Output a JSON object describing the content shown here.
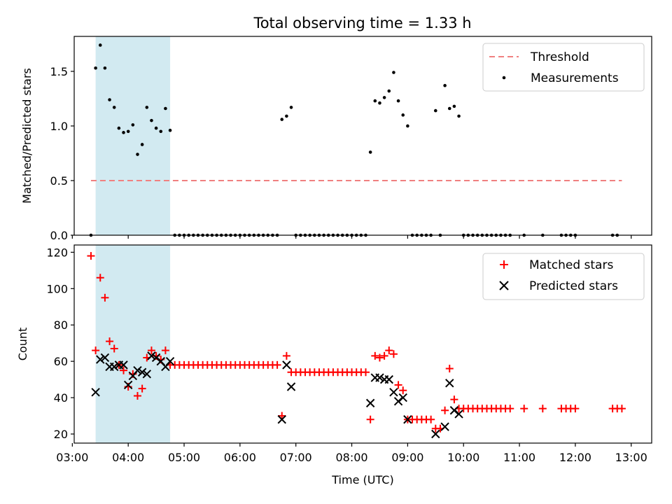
{
  "chart_data": [
    {
      "type": "scatter",
      "title": "Total observing time = 1.33 h",
      "xlabel": "",
      "ylabel": "Matched/Predicted stars",
      "xlim": [
        "03:02",
        "13:22"
      ],
      "ylim": [
        0,
        1.82
      ],
      "yticks": [
        0.0,
        0.5,
        1.0,
        1.5
      ],
      "ytick_labels": [
        "0.0",
        "0.5",
        "1.0",
        "1.5"
      ],
      "highlight_span": [
        "03:25",
        "04:45"
      ],
      "series": [
        {
          "name": "Threshold",
          "kind": "dashed-line",
          "color": "#f08080",
          "x": [
            "03:20",
            "12:50"
          ],
          "y": [
            0.5,
            0.5
          ]
        },
        {
          "name": "Measurements",
          "kind": "points",
          "color": "#000000",
          "points": [
            [
              "03:20",
              0
            ],
            [
              "03:25",
              1.53
            ],
            [
              "03:30",
              1.74
            ],
            [
              "03:35",
              1.53
            ],
            [
              "03:40",
              1.24
            ],
            [
              "03:45",
              1.17
            ],
            [
              "03:50",
              0.98
            ],
            [
              "03:55",
              0.94
            ],
            [
              "04:00",
              0.95
            ],
            [
              "04:05",
              1.01
            ],
            [
              "04:10",
              0.74
            ],
            [
              "04:15",
              0.83
            ],
            [
              "04:20",
              1.17
            ],
            [
              "04:25",
              1.05
            ],
            [
              "04:30",
              0.98
            ],
            [
              "04:35",
              0.95
            ],
            [
              "04:40",
              1.16
            ],
            [
              "04:45",
              0.96
            ],
            [
              "04:50",
              0
            ],
            [
              "04:55",
              0
            ],
            [
              "05:00",
              0
            ],
            [
              "05:05",
              0
            ],
            [
              "05:10",
              0
            ],
            [
              "05:15",
              0
            ],
            [
              "05:20",
              0
            ],
            [
              "05:25",
              0
            ],
            [
              "05:30",
              0
            ],
            [
              "05:35",
              0
            ],
            [
              "05:40",
              0
            ],
            [
              "05:45",
              0
            ],
            [
              "05:50",
              0
            ],
            [
              "05:55",
              0
            ],
            [
              "06:00",
              0
            ],
            [
              "06:05",
              0
            ],
            [
              "06:10",
              0
            ],
            [
              "06:15",
              0
            ],
            [
              "06:20",
              0
            ],
            [
              "06:25",
              0
            ],
            [
              "06:30",
              0
            ],
            [
              "06:35",
              0
            ],
            [
              "06:40",
              0
            ],
            [
              "06:45",
              1.06
            ],
            [
              "06:50",
              1.09
            ],
            [
              "06:55",
              1.17
            ],
            [
              "07:00",
              0
            ],
            [
              "07:05",
              0
            ],
            [
              "07:10",
              0
            ],
            [
              "07:15",
              0
            ],
            [
              "07:20",
              0
            ],
            [
              "07:25",
              0
            ],
            [
              "07:30",
              0
            ],
            [
              "07:35",
              0
            ],
            [
              "07:40",
              0
            ],
            [
              "07:45",
              0
            ],
            [
              "07:50",
              0
            ],
            [
              "07:55",
              0
            ],
            [
              "08:00",
              0
            ],
            [
              "08:05",
              0
            ],
            [
              "08:10",
              0
            ],
            [
              "08:15",
              0
            ],
            [
              "08:20",
              0.76
            ],
            [
              "08:25",
              1.23
            ],
            [
              "08:30",
              1.21
            ],
            [
              "08:35",
              1.26
            ],
            [
              "08:40",
              1.32
            ],
            [
              "08:45",
              1.49
            ],
            [
              "08:50",
              1.23
            ],
            [
              "08:55",
              1.1
            ],
            [
              "09:00",
              1.0
            ],
            [
              "09:05",
              0
            ],
            [
              "09:10",
              0
            ],
            [
              "09:15",
              0
            ],
            [
              "09:20",
              0
            ],
            [
              "09:25",
              0
            ],
            [
              "09:30",
              1.14
            ],
            [
              "09:35",
              0
            ],
            [
              "09:40",
              1.37
            ],
            [
              "09:45",
              1.16
            ],
            [
              "09:50",
              1.18
            ],
            [
              "09:55",
              1.09
            ],
            [
              "10:00",
              0
            ],
            [
              "10:05",
              0
            ],
            [
              "10:10",
              0
            ],
            [
              "10:15",
              0
            ],
            [
              "10:20",
              0
            ],
            [
              "10:25",
              0
            ],
            [
              "10:30",
              0
            ],
            [
              "10:35",
              0
            ],
            [
              "10:40",
              0
            ],
            [
              "10:45",
              0
            ],
            [
              "10:50",
              0
            ],
            [
              "11:05",
              0
            ],
            [
              "11:25",
              0
            ],
            [
              "11:45",
              0
            ],
            [
              "11:50",
              0
            ],
            [
              "11:55",
              0
            ],
            [
              "12:00",
              0
            ],
            [
              "12:40",
              0
            ],
            [
              "12:45",
              0
            ]
          ]
        }
      ],
      "legend": "top-right"
    },
    {
      "type": "scatter",
      "title": "",
      "xlabel": "Time (UTC)",
      "ylabel": "Count",
      "xlim": [
        "03:02",
        "13:22"
      ],
      "ylim": [
        15,
        124
      ],
      "yticks": [
        20,
        40,
        60,
        80,
        100,
        120
      ],
      "ytick_labels": [
        "20",
        "40",
        "60",
        "80",
        "100",
        "120"
      ],
      "xtick_labels": [
        "03:00",
        "04:00",
        "05:00",
        "06:00",
        "07:00",
        "08:00",
        "09:00",
        "10:00",
        "11:00",
        "12:00",
        "13:00"
      ],
      "highlight_span": [
        "03:25",
        "04:45"
      ],
      "series": [
        {
          "name": "Matched stars",
          "marker": "plus",
          "color": "#ff0000",
          "points": [
            [
              "03:20",
              118
            ],
            [
              "03:25",
              66
            ],
            [
              "03:30",
              106
            ],
            [
              "03:35",
              95
            ],
            [
              "03:40",
              71
            ],
            [
              "03:45",
              67
            ],
            [
              "03:50",
              58
            ],
            [
              "03:55",
              55
            ],
            [
              "04:00",
              46
            ],
            [
              "04:05",
              53
            ],
            [
              "04:10",
              41
            ],
            [
              "04:15",
              45
            ],
            [
              "04:20",
              62
            ],
            [
              "04:25",
              66
            ],
            [
              "04:30",
              63
            ],
            [
              "04:35",
              61
            ],
            [
              "04:40",
              66
            ],
            [
              "04:45",
              58
            ],
            [
              "04:50",
              58
            ],
            [
              "04:55",
              58
            ],
            [
              "05:00",
              58
            ],
            [
              "05:05",
              58
            ],
            [
              "05:10",
              58
            ],
            [
              "05:15",
              58
            ],
            [
              "05:20",
              58
            ],
            [
              "05:25",
              58
            ],
            [
              "05:30",
              58
            ],
            [
              "05:35",
              58
            ],
            [
              "05:40",
              58
            ],
            [
              "05:45",
              58
            ],
            [
              "05:50",
              58
            ],
            [
              "05:55",
              58
            ],
            [
              "06:00",
              58
            ],
            [
              "06:05",
              58
            ],
            [
              "06:10",
              58
            ],
            [
              "06:15",
              58
            ],
            [
              "06:20",
              58
            ],
            [
              "06:25",
              58
            ],
            [
              "06:30",
              58
            ],
            [
              "06:35",
              58
            ],
            [
              "06:40",
              58
            ],
            [
              "06:45",
              30
            ],
            [
              "06:50",
              63
            ],
            [
              "06:55",
              54
            ],
            [
              "07:00",
              54
            ],
            [
              "07:05",
              54
            ],
            [
              "07:10",
              54
            ],
            [
              "07:15",
              54
            ],
            [
              "07:20",
              54
            ],
            [
              "07:25",
              54
            ],
            [
              "07:30",
              54
            ],
            [
              "07:35",
              54
            ],
            [
              "07:40",
              54
            ],
            [
              "07:45",
              54
            ],
            [
              "07:50",
              54
            ],
            [
              "07:55",
              54
            ],
            [
              "08:00",
              54
            ],
            [
              "08:05",
              54
            ],
            [
              "08:10",
              54
            ],
            [
              "08:15",
              54
            ],
            [
              "08:20",
              28
            ],
            [
              "08:25",
              63
            ],
            [
              "08:30",
              62
            ],
            [
              "08:35",
              63
            ],
            [
              "08:40",
              66
            ],
            [
              "08:45",
              64
            ],
            [
              "08:50",
              47
            ],
            [
              "08:55",
              44
            ],
            [
              "09:00",
              28
            ],
            [
              "09:05",
              28
            ],
            [
              "09:10",
              28
            ],
            [
              "09:15",
              28
            ],
            [
              "09:20",
              28
            ],
            [
              "09:25",
              28
            ],
            [
              "09:30",
              23
            ],
            [
              "09:35",
              23
            ],
            [
              "09:40",
              33
            ],
            [
              "09:45",
              56
            ],
            [
              "09:50",
              39
            ],
            [
              "09:55",
              34
            ],
            [
              "10:00",
              34
            ],
            [
              "10:05",
              34
            ],
            [
              "10:10",
              34
            ],
            [
              "10:15",
              34
            ],
            [
              "10:20",
              34
            ],
            [
              "10:25",
              34
            ],
            [
              "10:30",
              34
            ],
            [
              "10:35",
              34
            ],
            [
              "10:40",
              34
            ],
            [
              "10:45",
              34
            ],
            [
              "10:50",
              34
            ],
            [
              "11:05",
              34
            ],
            [
              "11:25",
              34
            ],
            [
              "11:45",
              34
            ],
            [
              "11:50",
              34
            ],
            [
              "11:55",
              34
            ],
            [
              "12:00",
              34
            ],
            [
              "12:40",
              34
            ],
            [
              "12:45",
              34
            ],
            [
              "12:50",
              34
            ]
          ]
        },
        {
          "name": "Predicted stars",
          "marker": "x",
          "color": "#000000",
          "points": [
            [
              "03:25",
              43
            ],
            [
              "03:30",
              61
            ],
            [
              "03:35",
              62
            ],
            [
              "03:40",
              57
            ],
            [
              "03:45",
              57
            ],
            [
              "03:50",
              58
            ],
            [
              "03:55",
              58
            ],
            [
              "04:00",
              47
            ],
            [
              "04:05",
              52
            ],
            [
              "04:10",
              55
            ],
            [
              "04:15",
              54
            ],
            [
              "04:20",
              53
            ],
            [
              "04:25",
              63
            ],
            [
              "04:30",
              62
            ],
            [
              "04:35",
              60
            ],
            [
              "04:40",
              57
            ],
            [
              "04:45",
              60
            ],
            [
              "06:45",
              28
            ],
            [
              "06:50",
              58
            ],
            [
              "06:55",
              46
            ],
            [
              "08:20",
              37
            ],
            [
              "08:25",
              51
            ],
            [
              "08:30",
              51
            ],
            [
              "08:35",
              50
            ],
            [
              "08:40",
              50
            ],
            [
              "08:45",
              43
            ],
            [
              "08:50",
              38
            ],
            [
              "08:55",
              40
            ],
            [
              "09:00",
              28
            ],
            [
              "09:30",
              20
            ],
            [
              "09:40",
              24
            ],
            [
              "09:45",
              48
            ],
            [
              "09:50",
              33
            ],
            [
              "09:55",
              31
            ]
          ]
        }
      ],
      "legend": "top-right"
    }
  ]
}
